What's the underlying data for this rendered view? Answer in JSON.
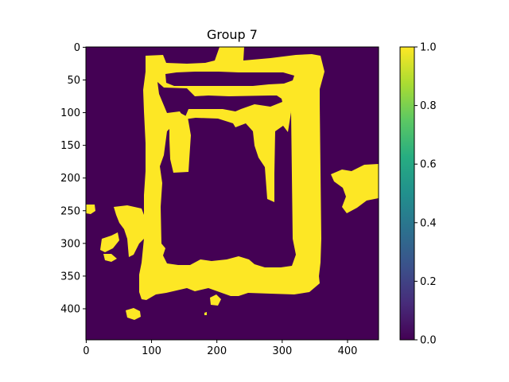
{
  "chart_data": {
    "type": "heatmap",
    "title": "Group 7",
    "xlabel": "",
    "ylabel": "",
    "image_shape": [
      448,
      448
    ],
    "x_ticks": [
      "0",
      "100",
      "200",
      "300",
      "400"
    ],
    "y_ticks": [
      "0",
      "50",
      "100",
      "150",
      "200",
      "250",
      "300",
      "350",
      "400"
    ],
    "colormap": "viridis",
    "value_range": [
      0.0,
      1.0
    ],
    "colorbar_ticks": [
      "0.0",
      "0.2",
      "0.4",
      "0.6",
      "0.8",
      "1.0"
    ],
    "colors": {
      "background_value_0": "#440154",
      "foreground_value_1": "#fde725"
    },
    "description_of_values": "Binary mask: outer rectangular frame region with value 1 (approx x 105-355, y 20-380), hollow interior with value 0, plus a blob on the right (x ~410-448, y ~180-250) and small islands at left.",
    "regions_value_1": [
      {
        "name": "outer-frame",
        "x_range": [
          105,
          360
        ],
        "y_range": [
          15,
          385
        ]
      },
      {
        "name": "right-blob",
        "x_range": [
          410,
          448
        ],
        "y_range": [
          180,
          255
        ]
      },
      {
        "name": "left-fragment",
        "x_range": [
          0,
          50
        ],
        "y_range": [
          245,
          330
        ]
      },
      {
        "name": "bottom-dot",
        "x_range": [
          60,
          85
        ],
        "y_range": [
          400,
          418
        ]
      }
    ]
  }
}
